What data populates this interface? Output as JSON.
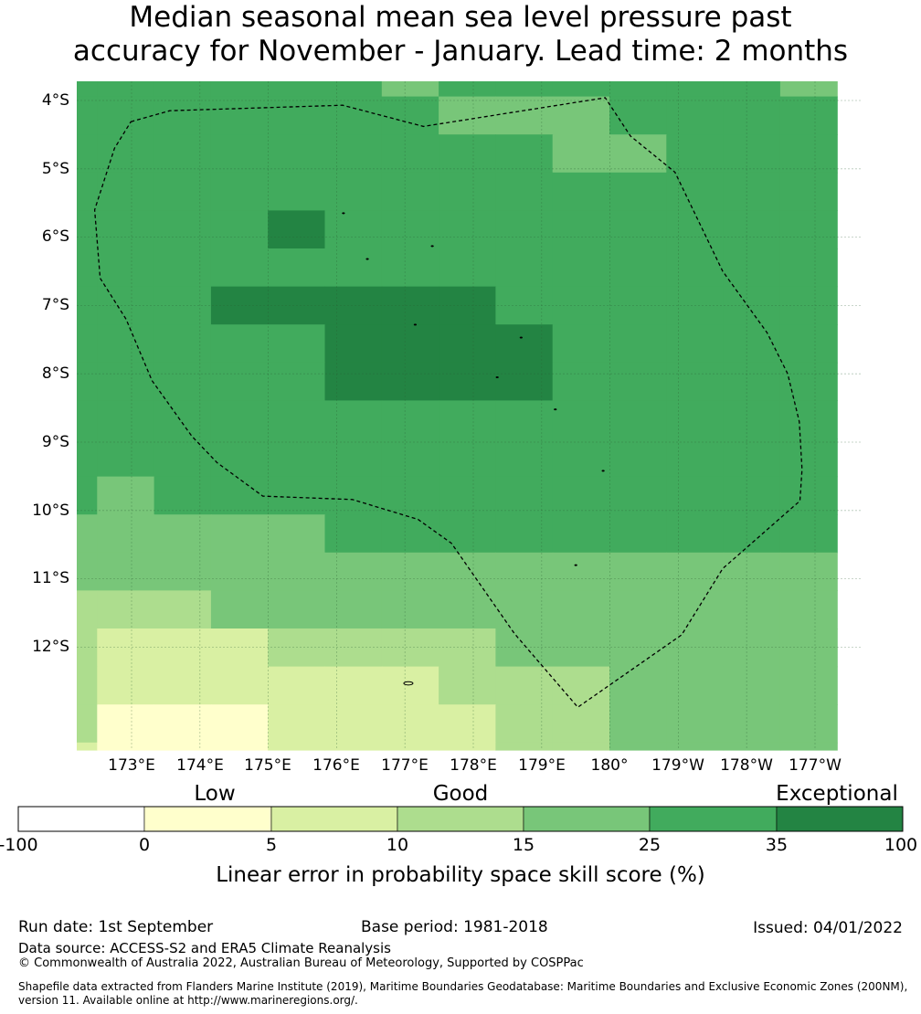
{
  "title": {
    "line1": "Median seasonal mean sea level pressure past",
    "line2": "accuracy for November - January. Lead time: 2 months"
  },
  "map": {
    "lat_labels": [
      "4°S",
      "5°S",
      "6°S",
      "7°S",
      "8°S",
      "9°S",
      "10°S",
      "11°S",
      "12°S"
    ],
    "lon_labels": [
      "173°E",
      "174°E",
      "175°E",
      "176°E",
      "177°E",
      "178°E",
      "179°E",
      "180°",
      "179°W",
      "178°W",
      "177°W"
    ],
    "grid_values": [
      [
        30,
        30,
        30,
        30,
        30,
        30,
        20,
        30,
        30,
        30,
        30,
        30,
        30,
        20
      ],
      [
        30,
        30,
        30,
        30,
        30,
        30,
        30,
        20,
        20,
        20,
        30,
        30,
        30,
        30
      ],
      [
        30,
        30,
        30,
        30,
        30,
        30,
        30,
        30,
        30,
        20,
        20,
        30,
        30,
        30
      ],
      [
        30,
        30,
        30,
        30,
        30,
        30,
        30,
        30,
        30,
        30,
        30,
        30,
        30,
        30
      ],
      [
        30,
        30,
        30,
        30,
        40,
        30,
        30,
        30,
        30,
        30,
        30,
        30,
        30,
        30
      ],
      [
        30,
        30,
        30,
        30,
        30,
        30,
        30,
        30,
        30,
        30,
        30,
        30,
        30,
        30
      ],
      [
        30,
        30,
        30,
        40,
        40,
        40,
        40,
        40,
        30,
        30,
        30,
        30,
        30,
        30
      ],
      [
        30,
        30,
        30,
        30,
        30,
        40,
        40,
        40,
        40,
        30,
        30,
        30,
        30,
        30
      ],
      [
        30,
        30,
        30,
        30,
        30,
        40,
        40,
        40,
        40,
        30,
        30,
        30,
        30,
        30
      ],
      [
        30,
        30,
        30,
        30,
        30,
        30,
        30,
        30,
        30,
        30,
        30,
        30,
        30,
        30
      ],
      [
        30,
        30,
        30,
        30,
        30,
        30,
        30,
        30,
        30,
        30,
        30,
        30,
        30,
        30
      ],
      [
        30,
        20,
        30,
        30,
        30,
        30,
        30,
        30,
        30,
        30,
        30,
        30,
        30,
        30
      ],
      [
        20,
        20,
        20,
        20,
        20,
        30,
        30,
        30,
        30,
        30,
        30,
        30,
        30,
        30
      ],
      [
        20,
        20,
        20,
        20,
        20,
        20,
        20,
        20,
        20,
        20,
        20,
        20,
        20,
        20
      ],
      [
        13,
        13,
        13,
        20,
        20,
        20,
        20,
        20,
        20,
        20,
        20,
        20,
        20,
        20
      ],
      [
        13,
        8,
        8,
        8,
        13,
        13,
        13,
        13,
        20,
        20,
        20,
        20,
        20,
        20
      ],
      [
        13,
        8,
        8,
        8,
        8,
        8,
        8,
        13,
        13,
        13,
        20,
        20,
        20,
        20
      ],
      [
        13,
        3,
        3,
        3,
        8,
        8,
        8,
        8,
        13,
        13,
        20,
        20,
        20,
        20
      ],
      [
        8,
        3,
        3,
        3,
        8,
        8,
        8,
        8,
        13,
        13,
        20,
        20,
        20,
        20
      ]
    ],
    "eez_boundary": [
      [
        172.99,
        -4.31
      ],
      [
        173.56,
        -4.15
      ],
      [
        176.09,
        -4.07
      ],
      [
        177.27,
        -4.38
      ],
      [
        179.93,
        -3.96
      ],
      [
        180.3,
        -4.52
      ],
      [
        180.95,
        -5.05
      ],
      [
        181.65,
        -6.5
      ],
      [
        182.3,
        -7.4
      ],
      [
        182.6,
        -8.0
      ],
      [
        182.77,
        -8.7
      ],
      [
        182.81,
        -9.4
      ],
      [
        182.78,
        -9.86
      ],
      [
        181.65,
        -10.85
      ],
      [
        181.05,
        -11.82
      ],
      [
        179.53,
        -12.88
      ],
      [
        178.6,
        -11.8
      ],
      [
        177.68,
        -10.48
      ],
      [
        177.19,
        -10.13
      ],
      [
        176.23,
        -9.84
      ],
      [
        174.92,
        -9.79
      ],
      [
        174.25,
        -9.3
      ],
      [
        173.88,
        -8.91
      ],
      [
        173.3,
        -8.1
      ],
      [
        172.92,
        -7.2
      ],
      [
        172.54,
        -6.6
      ],
      [
        172.46,
        -5.6
      ],
      [
        172.75,
        -4.7
      ],
      [
        172.99,
        -4.31
      ]
    ],
    "islands": [
      [
        176.1,
        -5.65
      ],
      [
        177.4,
        -6.13
      ],
      [
        176.45,
        -6.32
      ],
      [
        177.15,
        -7.28
      ],
      [
        178.7,
        -7.47
      ],
      [
        178.35,
        -8.05
      ],
      [
        179.2,
        -8.52
      ],
      [
        179.9,
        -9.42
      ],
      [
        179.5,
        -10.8
      ]
    ],
    "island_loop": [
      177.05,
      -12.53
    ]
  },
  "colorbar": {
    "category_labels": [
      "Low",
      "Good",
      "Exceptional"
    ],
    "tick_labels": [
      "-100",
      "0",
      "5",
      "10",
      "15",
      "25",
      "35",
      "100"
    ],
    "colors": [
      "#ffffff",
      "#ffffcc",
      "#d9f0a3",
      "#addd8e",
      "#78c679",
      "#41ab5d",
      "#238443"
    ],
    "xlabel": "Linear error in probability space skill score (%)"
  },
  "footer": {
    "run_date": "Run date: 1st September",
    "base_period": "Base period: 1981-2018",
    "issued": "Issued: 04/01/2022",
    "data_source": "Data source: ACCESS-S2 and ERA5 Climate Reanalysis",
    "copyright": "© Commonwealth of Australia 2022, Australian Bureau of Meteorology, Supported by COSPPac",
    "shapefile_line1": "Shapefile data extracted from Flanders Marine Institute (2019), Maritime Boundaries Geodatabase: Maritime Boundaries and Exclusive Economic Zones (200NM),",
    "shapefile_line2": "version 11. Available online at http://www.marineregions.org/."
  }
}
